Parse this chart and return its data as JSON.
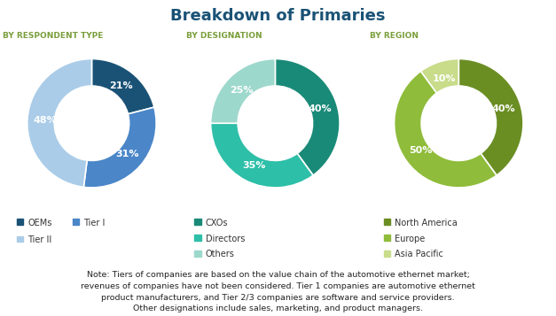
{
  "title": "Breakdown of Primaries",
  "title_color": "#1a5276",
  "subtitle_color": "#7a9e3b",
  "chart1_title": "BY RESPONDENT TYPE",
  "chart1_values": [
    21,
    31,
    48
  ],
  "chart1_labels": [
    "21%",
    "31%",
    "48%"
  ],
  "chart1_colors": [
    "#1a5276",
    "#4a86c8",
    "#aacce8"
  ],
  "chart1_legend": [
    "OEMs",
    "Tier I",
    "Tier II"
  ],
  "chart1_legend_ncol": 2,
  "chart2_title": "BY DESIGNATION",
  "chart2_values": [
    40,
    35,
    25
  ],
  "chart2_labels": [
    "40%",
    "35%",
    "25%"
  ],
  "chart2_colors": [
    "#1a8a78",
    "#2dbfa8",
    "#9dd8cc"
  ],
  "chart2_legend": [
    "CXOs",
    "Directors",
    "Others"
  ],
  "chart2_legend_ncol": 1,
  "chart3_title": "BY REGION",
  "chart3_values": [
    40,
    50,
    10
  ],
  "chart3_labels": [
    "40%",
    "50%",
    "10%"
  ],
  "chart3_colors": [
    "#6b8e23",
    "#8fbc3a",
    "#c8dc8a"
  ],
  "chart3_legend": [
    "North America",
    "Europe",
    "Asia Pacific"
  ],
  "chart3_legend_ncol": 1,
  "note": "Note: Tiers of companies are based on the value chain of the automotive ethernet market;\nrevenues of companies have not been considered. Tier 1 companies are automotive ethernet\nproduct manufacturers, and Tier 2/3 companies are software and service providers.\nOther designations include sales, marketing, and product managers.",
  "note_fontsize": 6.8,
  "label_fontsize": 8,
  "legend_fontsize": 7,
  "subtitle_fontsize": 6.5,
  "title_fontsize": 13
}
